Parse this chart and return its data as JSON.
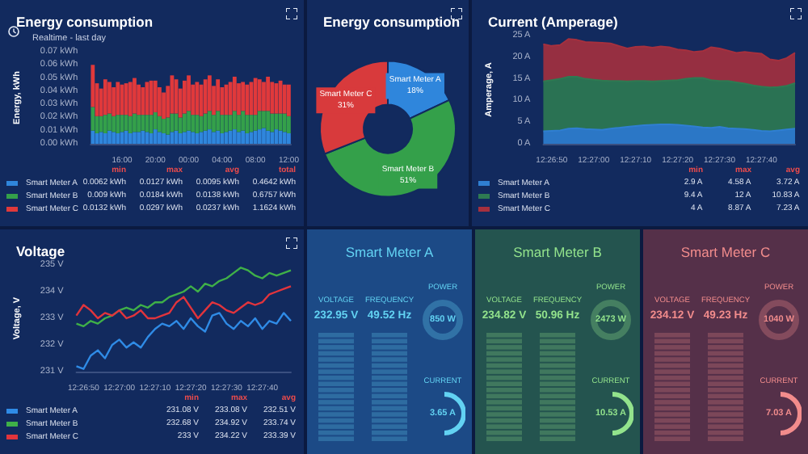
{
  "chart_data": [
    {
      "type": "bar",
      "title": "Energy consumption",
      "subtitle": "Realtime - last day",
      "ylabel": "Energy, kWh",
      "stacked": true,
      "legend": "bottom left",
      "categories": [
        null,
        null,
        null,
        null,
        null,
        null,
        null,
        "16:00",
        null,
        null,
        null,
        null,
        null,
        null,
        null,
        "20:00",
        null,
        null,
        null,
        null,
        null,
        null,
        null,
        "00:00",
        null,
        null,
        null,
        null,
        null,
        null,
        null,
        "04:00",
        null,
        null,
        null,
        null,
        null,
        null,
        null,
        "08:00",
        null,
        null,
        null,
        null,
        null,
        null,
        null,
        "12:00"
      ],
      "ylim": [
        0,
        0.07
      ],
      "yticks": [
        {
          "value": 0,
          "label": "0.00 kWh"
        },
        {
          "value": 0.01,
          "label": "0.01 kWh"
        },
        {
          "value": 0.02,
          "label": "0.02 kWh"
        },
        {
          "value": 0.03,
          "label": "0.03 kWh"
        },
        {
          "value": 0.04,
          "label": "0.04 kWh"
        },
        {
          "value": 0.05,
          "label": "0.05 kWh"
        },
        {
          "value": 0.06,
          "label": "0.06 kWh"
        },
        {
          "value": 0.07,
          "label": "0.07 kWh"
        }
      ],
      "series": [
        {
          "name": "Smart Meter A",
          "color": "#2f86dc",
          "values": [
            0.01,
            0.008,
            0.009,
            0.008,
            0.01,
            0.009,
            0.008,
            0.009,
            0.01,
            0.008,
            0.009,
            0.009,
            0.01,
            0.009,
            0.008,
            0.011,
            0.009,
            0.008,
            0.007,
            0.009,
            0.01,
            0.008,
            0.009,
            0.01,
            0.009,
            0.008,
            0.009,
            0.01,
            0.011,
            0.009,
            0.01,
            0.008,
            0.009,
            0.01,
            0.011,
            0.009,
            0.01,
            0.008,
            0.009,
            0.01,
            0.011,
            0.012,
            0.01,
            0.009,
            0.011,
            0.01,
            0.009,
            0.008
          ]
        },
        {
          "name": "Smart Meter B",
          "color": "#34a04a",
          "values": [
            0.018,
            0.013,
            0.012,
            0.014,
            0.013,
            0.012,
            0.014,
            0.013,
            0.012,
            0.013,
            0.014,
            0.013,
            0.012,
            0.013,
            0.014,
            0.013,
            0.012,
            0.011,
            0.013,
            0.014,
            0.013,
            0.012,
            0.014,
            0.015,
            0.013,
            0.014,
            0.012,
            0.013,
            0.014,
            0.013,
            0.015,
            0.014,
            0.013,
            0.012,
            0.014,
            0.013,
            0.015,
            0.014,
            0.013,
            0.012,
            0.014,
            0.013,
            0.015,
            0.014,
            0.012,
            0.013,
            0.014,
            0.013
          ]
        },
        {
          "name": "Smart Meter C",
          "color": "#e0393b",
          "values": [
            0.032,
            0.025,
            0.021,
            0.027,
            0.024,
            0.022,
            0.025,
            0.023,
            0.024,
            0.026,
            0.027,
            0.023,
            0.021,
            0.025,
            0.026,
            0.024,
            0.022,
            0.02,
            0.024,
            0.029,
            0.026,
            0.022,
            0.025,
            0.027,
            0.023,
            0.025,
            0.024,
            0.026,
            0.027,
            0.022,
            0.024,
            0.021,
            0.023,
            0.025,
            0.026,
            0.024,
            0.022,
            0.023,
            0.025,
            0.028,
            0.024,
            0.022,
            0.026,
            0.024,
            0.023,
            0.025,
            0.022,
            0.024
          ]
        }
      ],
      "annotations": [
        "min",
        "max",
        "avg",
        "total",
        "0.0062 kWh",
        "0.0127 kWh",
        "0.0095 kWh",
        "0.4642 kWh",
        "0.009 kWh",
        "0.0184 kWh",
        "0.0138 kWh",
        "0.6757 kWh",
        "0.0132 kWh",
        "0.0297 kWh",
        "0.0237 kWh",
        "1.1624 kWh"
      ]
    },
    {
      "type": "donut",
      "title": "Energy consumption",
      "categories": [
        "Smart Meter A",
        "Smart Meter B",
        "Smart Meter C"
      ],
      "values": [
        18,
        51,
        31
      ],
      "colors": [
        "#2f86dc",
        "#34a04a",
        "#d83a3c"
      ],
      "value_labels": [
        "18%",
        "51%",
        "31%"
      ]
    },
    {
      "type": "area",
      "title": "Current (Amperage)",
      "ylabel": "Amperage, A",
      "stacked": true,
      "legend": "bottom left",
      "marker": "none",
      "categories": [
        null,
        "12:26:50",
        null,
        null,
        null,
        null,
        "12:27:00",
        null,
        null,
        null,
        null,
        "12:27:10",
        null,
        null,
        null,
        null,
        "12:27:20",
        null,
        null,
        null,
        null,
        "12:27:30",
        null,
        null,
        null,
        null,
        "12:27:40",
        null,
        null,
        null,
        null
      ],
      "ylim": [
        0,
        25
      ],
      "yticks": [
        {
          "value": 0,
          "label": "0 A"
        },
        {
          "value": 5,
          "label": "5 A"
        },
        {
          "value": 10,
          "label": "10 A"
        },
        {
          "value": 15,
          "label": "15 A"
        },
        {
          "value": 20,
          "label": "20 A"
        },
        {
          "value": 25,
          "label": "25 A"
        }
      ],
      "series": [
        {
          "name": "Smart Meter A",
          "color": "#2f7fd2",
          "values": [
            2.9,
            3.0,
            3.1,
            3.5,
            3.6,
            3.4,
            3.3,
            3.2,
            3.5,
            3.7,
            3.9,
            4.1,
            4.3,
            4.4,
            4.5,
            4.5,
            4.4,
            4.2,
            4.0,
            3.8,
            3.7,
            3.9,
            3.6,
            3.5,
            3.4,
            3.2,
            3.0,
            2.9,
            3.1,
            3.3,
            3.5
          ]
        },
        {
          "name": "Smart Meter B",
          "color": "#2e7a52",
          "values": [
            11.5,
            11.7,
            11.9,
            12.0,
            11.9,
            11.6,
            11.5,
            11.4,
            11.0,
            10.8,
            10.5,
            10.4,
            10.2,
            10.0,
            10.0,
            10.1,
            10.3,
            10.8,
            11.2,
            11.4,
            11.0,
            10.6,
            10.9,
            10.7,
            10.5,
            10.3,
            10.2,
            10.1,
            10.0,
            10.1,
            10.5
          ]
        },
        {
          "name": "Smart Meter C",
          "color": "#a5303e",
          "values": [
            8.6,
            7.9,
            7.8,
            8.7,
            8.5,
            8.5,
            8.6,
            8.7,
            8.7,
            8.1,
            7.6,
            7.9,
            8.0,
            7.8,
            8.0,
            7.7,
            7.1,
            6.6,
            6.0,
            6.2,
            7.6,
            7.5,
            7.0,
            6.8,
            7.3,
            7.5,
            7.6,
            6.5,
            6.1,
            6.4,
            7.0
          ]
        }
      ],
      "annotations": [
        "min",
        "max",
        "avg",
        "2.9 A",
        "4.58 A",
        "3.72 A",
        "9.4 A",
        "12 A",
        "10.83 A",
        "4 A",
        "8.87 A",
        "7.23 A"
      ]
    },
    {
      "type": "line",
      "title": "Voltage",
      "ylabel": "Voltage, V",
      "legend": "bottom left",
      "marker": "none",
      "line_style": "solid",
      "categories": [
        null,
        "12:26:50",
        null,
        null,
        null,
        null,
        "12:27:00",
        null,
        null,
        null,
        null,
        "12:27:10",
        null,
        null,
        null,
        null,
        "12:27:20",
        null,
        null,
        null,
        null,
        "12:27:30",
        null,
        null,
        null,
        null,
        "12:27:40",
        null,
        null,
        null,
        null
      ],
      "ylim": [
        231,
        235
      ],
      "yticks": [
        {
          "value": 231,
          "label": "231 V"
        },
        {
          "value": 232,
          "label": "232 V"
        },
        {
          "value": 233,
          "label": "233 V"
        },
        {
          "value": 234,
          "label": "234 V"
        },
        {
          "value": 235,
          "label": "235 V"
        }
      ],
      "series": [
        {
          "name": "Smart Meter A",
          "color": "#2f8be6",
          "values": [
            231.2,
            231.1,
            231.6,
            231.8,
            231.5,
            232.0,
            232.2,
            231.9,
            232.1,
            231.9,
            232.3,
            232.6,
            232.8,
            232.7,
            232.9,
            232.6,
            233.0,
            232.7,
            232.5,
            233.1,
            233.2,
            232.8,
            232.6,
            232.9,
            232.7,
            233.0,
            232.6,
            232.9,
            232.8,
            233.2,
            232.9
          ]
        },
        {
          "name": "Smart Meter B",
          "color": "#3fb048",
          "values": [
            232.8,
            232.7,
            232.9,
            232.8,
            233.0,
            233.1,
            233.3,
            233.4,
            233.3,
            233.5,
            233.4,
            233.6,
            233.6,
            233.8,
            233.9,
            234.0,
            234.2,
            234.0,
            234.3,
            234.2,
            234.4,
            234.5,
            234.7,
            234.9,
            234.8,
            234.6,
            234.5,
            234.7,
            234.6,
            234.7,
            234.8
          ]
        },
        {
          "name": "Smart Meter C",
          "color": "#e2343c",
          "values": [
            233.1,
            233.5,
            233.3,
            233.0,
            233.2,
            233.1,
            233.3,
            233.0,
            233.1,
            233.3,
            233.0,
            233.0,
            233.1,
            233.2,
            233.6,
            233.8,
            233.4,
            233.0,
            233.3,
            233.6,
            233.5,
            233.3,
            233.2,
            233.4,
            233.6,
            233.5,
            233.6,
            233.9,
            234.0,
            234.1,
            234.2
          ]
        }
      ],
      "annotations": [
        "min",
        "max",
        "avg",
        "231.08 V",
        "233.08 V",
        "232.51 V",
        "232.68 V",
        "234.92 V",
        "233.74 V",
        "233 V",
        "234.22 V",
        "233.39 V"
      ]
    },
    {
      "type": "other",
      "title": "Smart Meter A",
      "annotations": [
        "VOLTAGE",
        "232.95 V",
        "FREQUENCY",
        "49.52 Hz",
        "POWER",
        "850 W",
        "CURRENT",
        "3.65 A"
      ]
    },
    {
      "type": "other",
      "title": "Smart Meter B",
      "annotations": [
        "VOLTAGE",
        "234.82 V",
        "FREQUENCY",
        "50.96 Hz",
        "POWER",
        "2473 W",
        "CURRENT",
        "10.53 A"
      ]
    },
    {
      "type": "other",
      "title": "Smart Meter C",
      "annotations": [
        "VOLTAGE",
        "234.12 V",
        "FREQUENCY",
        "49.23 Hz",
        "POWER",
        "1040 W",
        "CURRENT",
        "7.03 A"
      ]
    }
  ]
}
